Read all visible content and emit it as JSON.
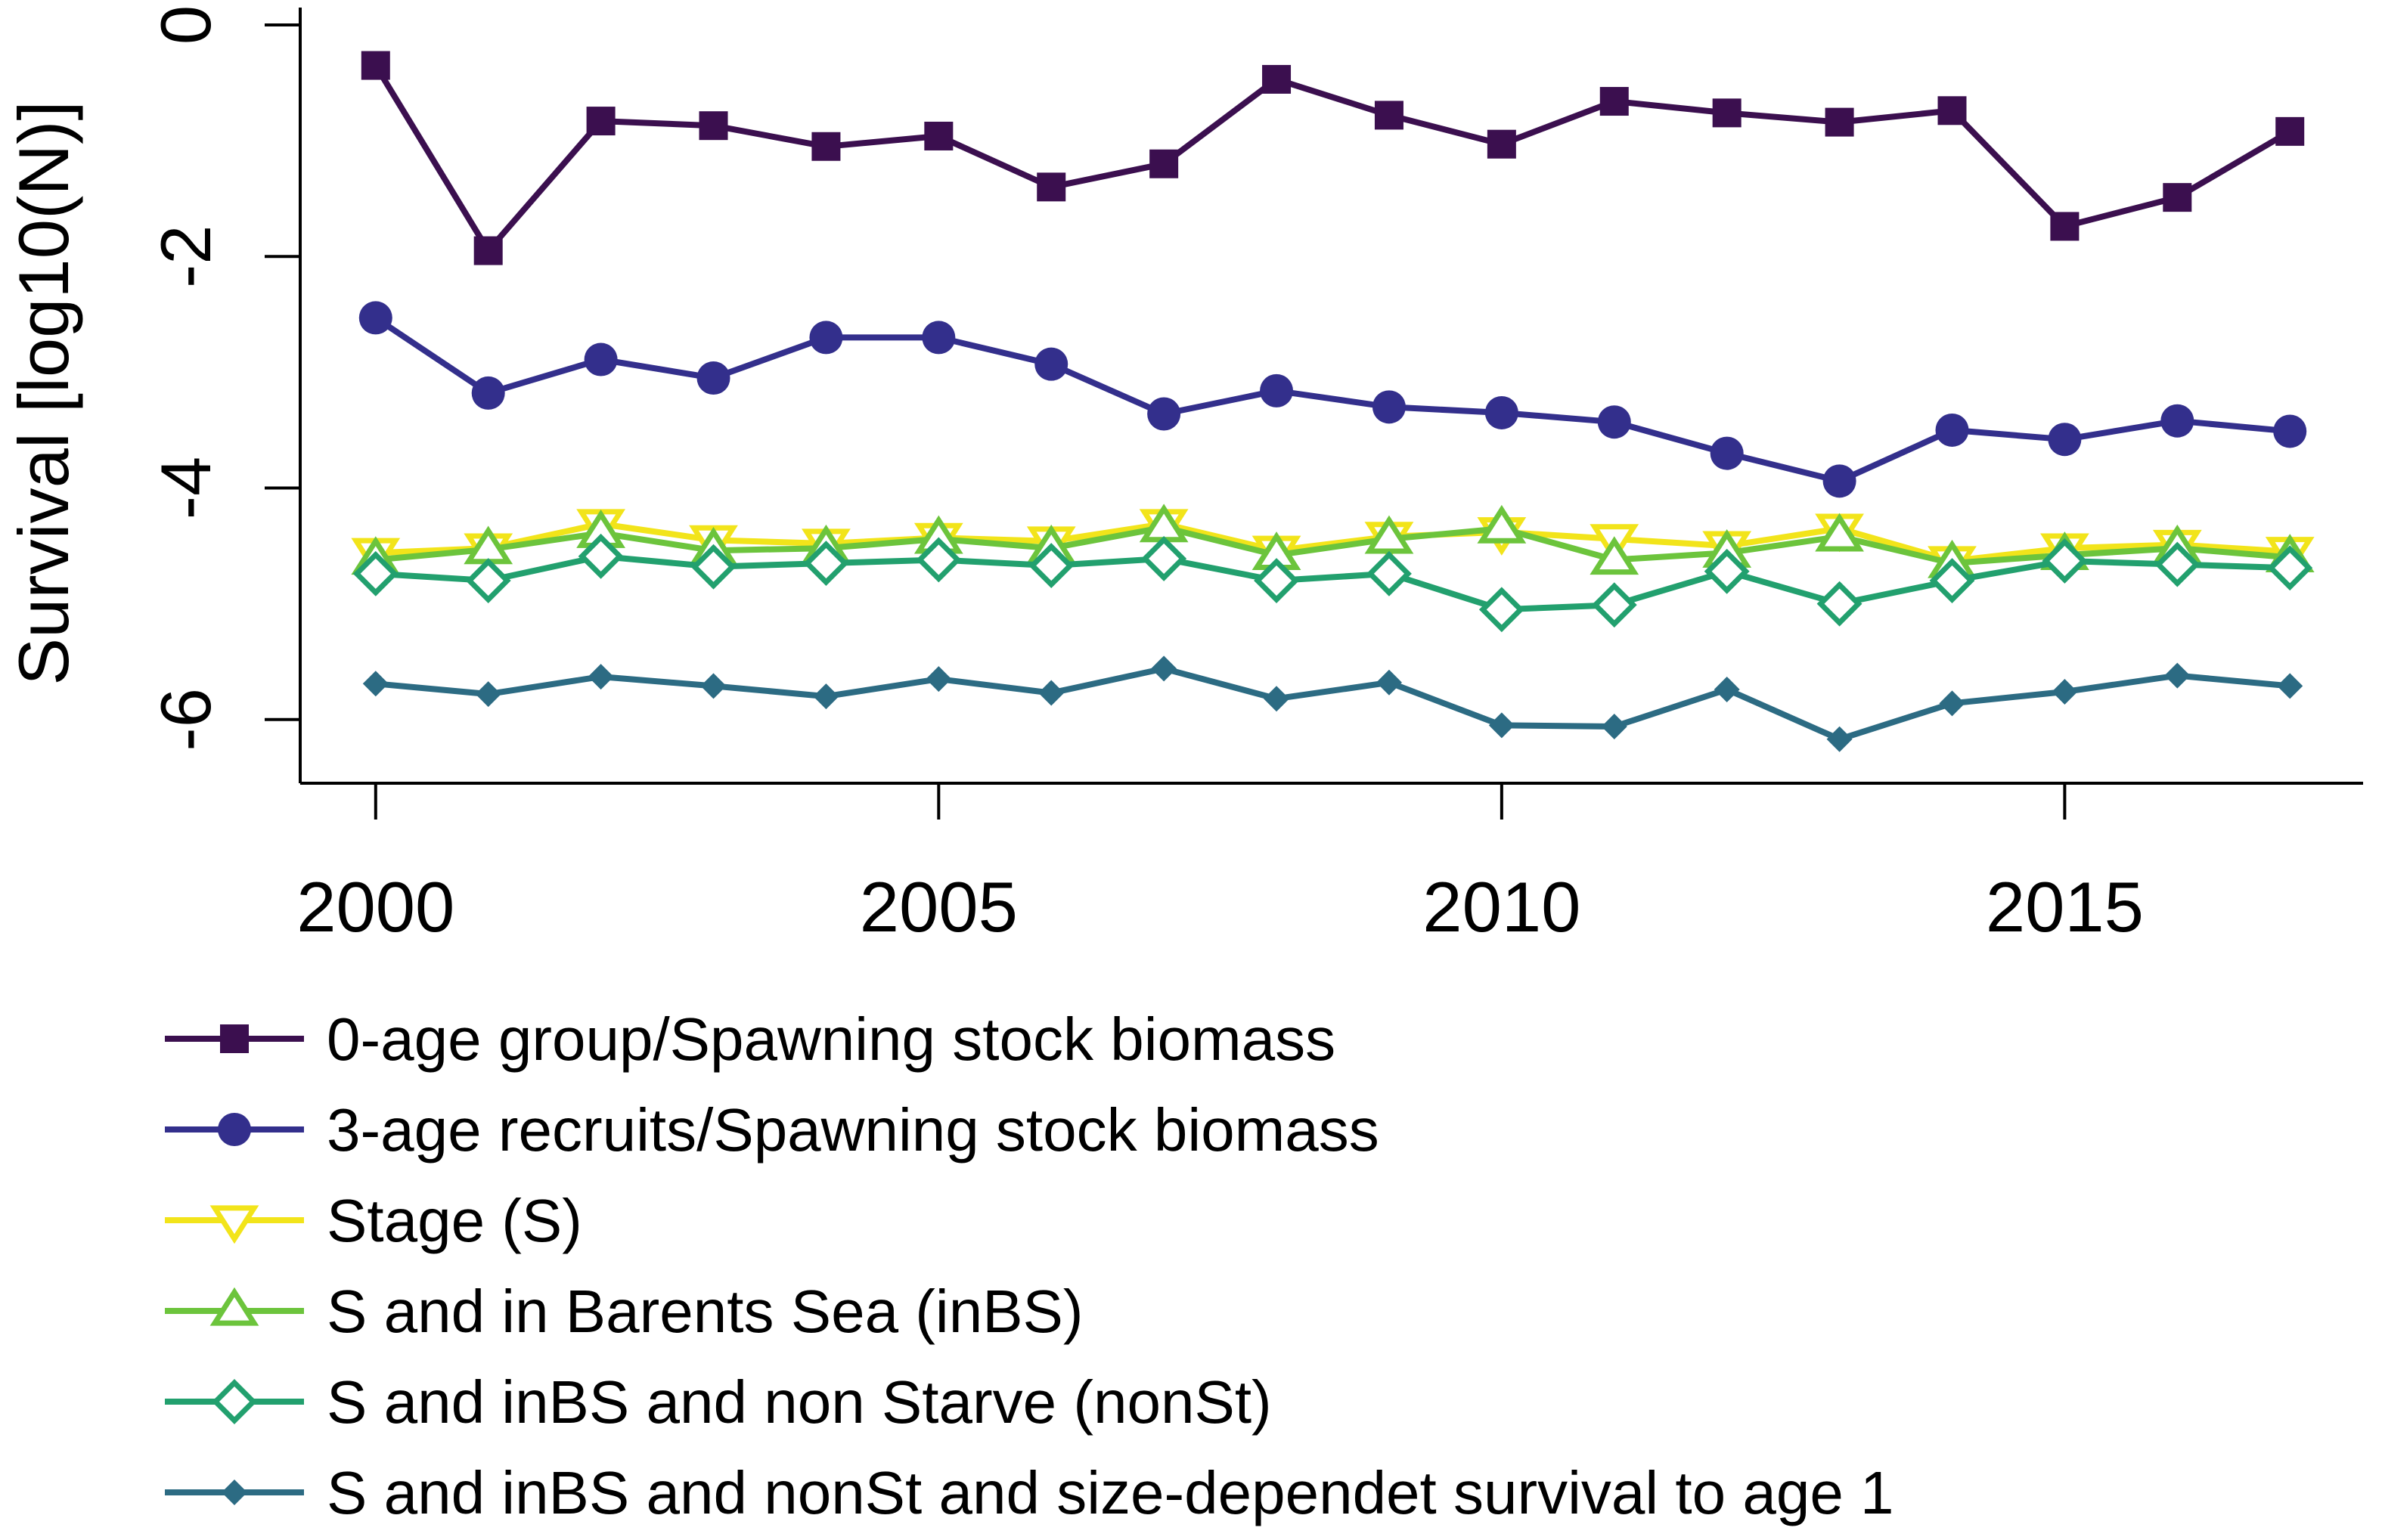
{
  "chart_data": {
    "type": "line",
    "title": "",
    "xlabel": "",
    "ylabel": "Survival [log10(N)]",
    "xlim": [
      1999.35,
      2017.65
    ],
    "ylim": [
      -6.55,
      0.15
    ],
    "x_ticks": [
      2000,
      2005,
      2010,
      2015
    ],
    "x_tick_labels": [
      "2000",
      "2005",
      "2010",
      "2015"
    ],
    "y_ticks": [
      0,
      -2,
      -4,
      -6
    ],
    "y_tick_labels": [
      "0",
      "-2",
      "-4",
      "-6"
    ],
    "grid": false,
    "legend_position": "bottom",
    "x": [
      2000,
      2001,
      2002,
      2003,
      2004,
      2005,
      2006,
      2007,
      2008,
      2009,
      2010,
      2011,
      2012,
      2013,
      2014,
      2015,
      2016,
      2017
    ],
    "series": [
      {
        "name": "0-age group/Spawning stock biomass",
        "color": "#3b0f4f",
        "marker": "square",
        "values": [
          -0.35,
          -1.95,
          -0.83,
          -0.87,
          -1.05,
          -0.96,
          -1.4,
          -1.2,
          -0.47,
          -0.78,
          -1.03,
          -0.66,
          -0.76,
          -0.84,
          -0.74,
          -1.74,
          -1.49,
          -0.92
        ]
      },
      {
        "name": "3-age recruits/Spawning stock biomass",
        "color": "#332f8c",
        "marker": "circle",
        "values": [
          -2.53,
          -3.18,
          -2.89,
          -3.05,
          -2.7,
          -2.7,
          -2.93,
          -3.36,
          -3.16,
          -3.3,
          -3.35,
          -3.43,
          -3.7,
          -3.94,
          -3.5,
          -3.58,
          -3.42,
          -3.51
        ]
      },
      {
        "name": "Stage (S)",
        "color": "#f2e41a",
        "marker": "triangle-down",
        "values": [
          -4.56,
          -4.52,
          -4.31,
          -4.45,
          -4.48,
          -4.43,
          -4.46,
          -4.31,
          -4.54,
          -4.42,
          -4.38,
          -4.44,
          -4.5,
          -4.35,
          -4.63,
          -4.52,
          -4.49,
          -4.55
        ]
      },
      {
        "name": "S and in Barents Sea (inBS)",
        "color": "#6cc43c",
        "marker": "triangle-up",
        "values": [
          -4.62,
          -4.53,
          -4.39,
          -4.54,
          -4.52,
          -4.44,
          -4.52,
          -4.34,
          -4.58,
          -4.44,
          -4.35,
          -4.62,
          -4.56,
          -4.42,
          -4.65,
          -4.58,
          -4.52,
          -4.6
        ]
      },
      {
        "name": "S and inBS and non Starve (nonSt)",
        "color": "#22a06e",
        "marker": "diamond-open",
        "values": [
          -4.74,
          -4.8,
          -4.59,
          -4.68,
          -4.65,
          -4.62,
          -4.67,
          -4.61,
          -4.8,
          -4.74,
          -5.05,
          -5.01,
          -4.72,
          -5.0,
          -4.8,
          -4.63,
          -4.66,
          -4.69
        ]
      },
      {
        "name": "S and inBS and nonSt and size-dependet survival to age 1",
        "color": "#2c6b83",
        "marker": "diamond-small",
        "values": [
          -5.69,
          -5.78,
          -5.63,
          -5.71,
          -5.8,
          -5.65,
          -5.77,
          -5.56,
          -5.82,
          -5.68,
          -6.05,
          -6.06,
          -5.74,
          -6.17,
          -5.86,
          -5.76,
          -5.62,
          -5.71
        ]
      }
    ]
  }
}
